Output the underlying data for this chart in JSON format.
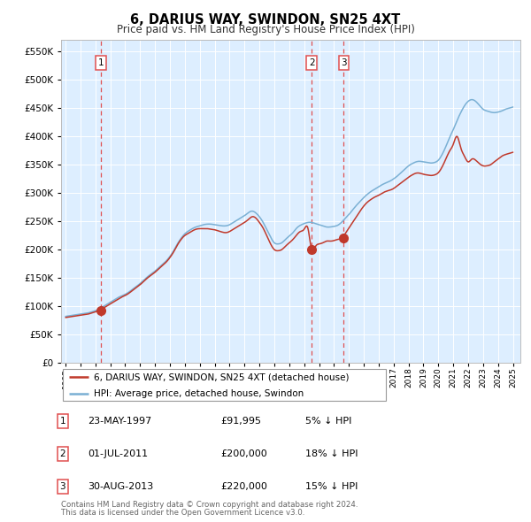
{
  "title": "6, DARIUS WAY, SWINDON, SN25 4XT",
  "subtitle": "Price paid vs. HM Land Registry's House Price Index (HPI)",
  "legend_line1": "6, DARIUS WAY, SWINDON, SN25 4XT (detached house)",
  "legend_line2": "HPI: Average price, detached house, Swindon",
  "table_rows": [
    {
      "num": "1",
      "date": "23-MAY-1997",
      "price": "£91,995",
      "pct": "5% ↓ HPI"
    },
    {
      "num": "2",
      "date": "01-JUL-2011",
      "price": "£200,000",
      "pct": "18% ↓ HPI"
    },
    {
      "num": "3",
      "date": "30-AUG-2013",
      "price": "£220,000",
      "pct": "15% ↓ HPI"
    }
  ],
  "footnote1": "Contains HM Land Registry data © Crown copyright and database right 2024.",
  "footnote2": "This data is licensed under the Open Government Licence v3.0.",
  "vline_years": [
    1997.38,
    2011.5,
    2013.66
  ],
  "sale_points": [
    {
      "year": 1997.38,
      "price": 91995
    },
    {
      "year": 2011.5,
      "price": 200000
    },
    {
      "year": 2013.66,
      "price": 220000
    }
  ],
  "ylim": [
    0,
    570000
  ],
  "yticks": [
    0,
    50000,
    100000,
    150000,
    200000,
    250000,
    300000,
    350000,
    400000,
    450000,
    500000,
    550000
  ],
  "xlim_start": 1994.7,
  "xlim_end": 2025.5,
  "hpi_color": "#7ab0d4",
  "price_color": "#c0392b",
  "vline_color": "#e05050",
  "bg_color": "#ddeeff",
  "grid_color": "#ffffff",
  "hpi_data_x": [
    1995.0,
    1995.25,
    1995.5,
    1995.75,
    1996.0,
    1996.25,
    1996.5,
    1996.75,
    1997.0,
    1997.25,
    1997.5,
    1997.75,
    1998.0,
    1998.25,
    1998.5,
    1998.75,
    1999.0,
    1999.25,
    1999.5,
    1999.75,
    2000.0,
    2000.25,
    2000.5,
    2000.75,
    2001.0,
    2001.25,
    2001.5,
    2001.75,
    2002.0,
    2002.25,
    2002.5,
    2002.75,
    2003.0,
    2003.25,
    2003.5,
    2003.75,
    2004.0,
    2004.25,
    2004.5,
    2004.75,
    2005.0,
    2005.25,
    2005.5,
    2005.75,
    2006.0,
    2006.25,
    2006.5,
    2006.75,
    2007.0,
    2007.25,
    2007.5,
    2007.75,
    2008.0,
    2008.25,
    2008.5,
    2008.75,
    2009.0,
    2009.25,
    2009.5,
    2009.75,
    2010.0,
    2010.25,
    2010.5,
    2010.75,
    2011.0,
    2011.25,
    2011.5,
    2011.75,
    2012.0,
    2012.25,
    2012.5,
    2012.75,
    2013.0,
    2013.25,
    2013.5,
    2013.75,
    2014.0,
    2014.25,
    2014.5,
    2014.75,
    2015.0,
    2015.25,
    2015.5,
    2015.75,
    2016.0,
    2016.25,
    2016.5,
    2016.75,
    2017.0,
    2017.25,
    2017.5,
    2017.75,
    2018.0,
    2018.25,
    2018.5,
    2018.75,
    2019.0,
    2019.25,
    2019.5,
    2019.75,
    2020.0,
    2020.25,
    2020.5,
    2020.75,
    2021.0,
    2021.25,
    2021.5,
    2021.75,
    2022.0,
    2022.25,
    2022.5,
    2022.75,
    2023.0,
    2023.25,
    2023.5,
    2023.75,
    2024.0,
    2024.25,
    2024.5,
    2024.75,
    2025.0
  ],
  "hpi_data_y": [
    82000,
    83000,
    84000,
    85000,
    86000,
    87000,
    88000,
    90000,
    92000,
    95000,
    99000,
    103000,
    107000,
    111000,
    115000,
    118000,
    121000,
    125000,
    130000,
    135000,
    140000,
    146000,
    152000,
    157000,
    162000,
    168000,
    174000,
    180000,
    188000,
    198000,
    210000,
    220000,
    228000,
    233000,
    237000,
    240000,
    242000,
    244000,
    245000,
    245000,
    244000,
    243000,
    242000,
    242000,
    244000,
    248000,
    252000,
    256000,
    260000,
    265000,
    268000,
    265000,
    258000,
    248000,
    235000,
    222000,
    212000,
    210000,
    212000,
    218000,
    224000,
    230000,
    238000,
    243000,
    246000,
    248000,
    248000,
    246000,
    244000,
    242000,
    240000,
    240000,
    241000,
    243000,
    248000,
    255000,
    262000,
    270000,
    278000,
    285000,
    292000,
    298000,
    303000,
    307000,
    311000,
    315000,
    318000,
    321000,
    325000,
    330000,
    336000,
    342000,
    348000,
    352000,
    355000,
    356000,
    355000,
    354000,
    353000,
    354000,
    358000,
    368000,
    382000,
    398000,
    412000,
    428000,
    442000,
    454000,
    462000,
    465000,
    462000,
    455000,
    448000,
    445000,
    443000,
    442000,
    443000,
    445000,
    448000,
    450000,
    452000
  ],
  "price_data_x": [
    1995.0,
    1995.25,
    1995.5,
    1995.75,
    1996.0,
    1996.25,
    1996.5,
    1996.75,
    1997.0,
    1997.25,
    1997.5,
    1997.75,
    1998.0,
    1998.25,
    1998.5,
    1998.75,
    1999.0,
    1999.25,
    1999.5,
    1999.75,
    2000.0,
    2000.25,
    2000.5,
    2000.75,
    2001.0,
    2001.25,
    2001.5,
    2001.75,
    2002.0,
    2002.25,
    2002.5,
    2002.75,
    2003.0,
    2003.25,
    2003.5,
    2003.75,
    2004.0,
    2004.25,
    2004.5,
    2004.75,
    2005.0,
    2005.25,
    2005.5,
    2005.75,
    2006.0,
    2006.25,
    2006.5,
    2006.75,
    2007.0,
    2007.25,
    2007.5,
    2007.75,
    2008.0,
    2008.25,
    2008.5,
    2008.75,
    2009.0,
    2009.25,
    2009.5,
    2009.75,
    2010.0,
    2010.25,
    2010.5,
    2010.75,
    2011.0,
    2011.25,
    2011.5,
    2011.75,
    2012.0,
    2012.25,
    2012.5,
    2012.75,
    2013.0,
    2013.25,
    2013.5,
    2013.75,
    2014.0,
    2014.25,
    2014.5,
    2014.75,
    2015.0,
    2015.25,
    2015.5,
    2015.75,
    2016.0,
    2016.25,
    2016.5,
    2016.75,
    2017.0,
    2017.25,
    2017.5,
    2017.75,
    2018.0,
    2018.25,
    2018.5,
    2018.75,
    2019.0,
    2019.25,
    2019.5,
    2019.75,
    2020.0,
    2020.25,
    2020.5,
    2020.75,
    2021.0,
    2021.25,
    2021.5,
    2021.75,
    2022.0,
    2022.25,
    2022.5,
    2022.75,
    2023.0,
    2023.25,
    2023.5,
    2023.75,
    2024.0,
    2024.25,
    2024.5,
    2024.75,
    2025.0
  ],
  "price_data_y": [
    80000,
    81000,
    82000,
    83000,
    84000,
    85000,
    86000,
    88000,
    90000,
    92000,
    96000,
    100000,
    104000,
    108000,
    112000,
    116000,
    119000,
    123000,
    128000,
    133000,
    138000,
    144000,
    150000,
    155000,
    160000,
    166000,
    172000,
    178000,
    186000,
    196000,
    208000,
    218000,
    225000,
    229000,
    233000,
    236000,
    237000,
    237000,
    237000,
    236000,
    235000,
    233000,
    231000,
    230000,
    232000,
    236000,
    240000,
    244000,
    248000,
    253000,
    258000,
    256000,
    248000,
    238000,
    224000,
    210000,
    200000,
    198000,
    200000,
    206000,
    212000,
    218000,
    226000,
    232000,
    236000,
    238000,
    200000,
    205000,
    210000,
    212000,
    215000,
    215000,
    216000,
    218000,
    220000,
    228000,
    238000,
    248000,
    258000,
    268000,
    277000,
    284000,
    289000,
    293000,
    296000,
    300000,
    303000,
    305000,
    308000,
    313000,
    318000,
    323000,
    328000,
    332000,
    335000,
    335000,
    333000,
    332000,
    331000,
    332000,
    336000,
    346000,
    360000,
    374000,
    386000,
    400000,
    380000,
    365000,
    355000,
    360000,
    358000,
    352000,
    348000,
    348000,
    350000,
    355000,
    360000,
    365000,
    368000,
    370000,
    372000
  ]
}
